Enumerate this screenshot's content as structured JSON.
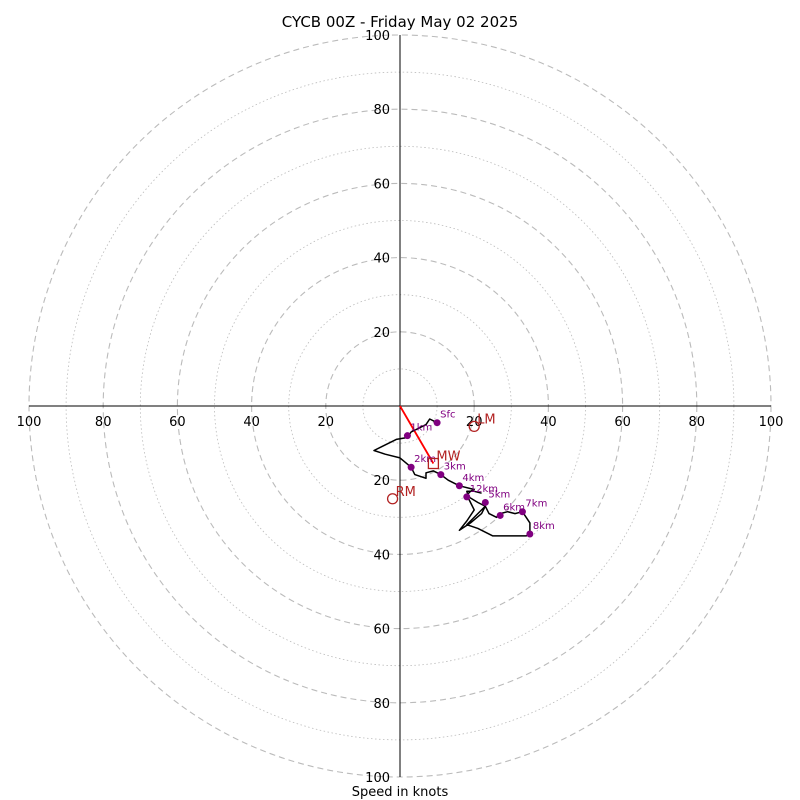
{
  "chart_data": {
    "type": "hodograph",
    "title": "CYCB 00Z - Friday May 02 2025",
    "xlabel": "Speed in knots",
    "ring_max": 100,
    "ring_major_step": 20,
    "ring_minor_step": 10,
    "axis_tick_values": [
      20,
      40,
      60,
      80,
      100
    ],
    "axis_tick_labels": [
      "20",
      "40",
      "60",
      "80",
      "100"
    ],
    "grid": true,
    "colors": {
      "trace": "#000000",
      "height_points": "#800080",
      "motion": "#b22222",
      "shear_vector": "#ff0000",
      "grid": "#bbbbbb"
    },
    "trace_uv": [
      [
        10.0,
        -4.5
      ],
      [
        8.0,
        -3.5
      ],
      [
        7.0,
        -5.0
      ],
      [
        5.0,
        -6.0
      ],
      [
        3.0,
        -7.0
      ],
      [
        2.0,
        -8.5
      ],
      [
        -1.0,
        -9.0
      ],
      [
        -5.0,
        -11.0
      ],
      [
        -7.0,
        -12.0
      ],
      [
        -4.0,
        -13.0
      ],
      [
        0.0,
        -14.0
      ],
      [
        3.0,
        -16.5
      ],
      [
        4.0,
        -18.5
      ],
      [
        7.0,
        -19.5
      ],
      [
        7.0,
        -18.0
      ],
      [
        9.0,
        -17.5
      ],
      [
        11.0,
        -18.5
      ],
      [
        13.0,
        -20.0
      ],
      [
        16.0,
        -21.5
      ],
      [
        20.0,
        -22.5
      ],
      [
        19.0,
        -23.0
      ],
      [
        18.0,
        -24.0
      ],
      [
        19.0,
        -26.0
      ],
      [
        20.0,
        -28.0
      ],
      [
        18.0,
        -31.0
      ],
      [
        16.0,
        -33.5
      ],
      [
        19.0,
        -31.5
      ],
      [
        22.0,
        -29.0
      ],
      [
        23.0,
        -27.0
      ],
      [
        24.0,
        -29.0
      ],
      [
        26.0,
        -30.0
      ],
      [
        27.0,
        -29.0
      ],
      [
        29.0,
        -28.5
      ],
      [
        31.0,
        -29.0
      ],
      [
        33.0,
        -28.5
      ],
      [
        35.0,
        -31.5
      ],
      [
        35.0,
        -34.5
      ],
      [
        34.0,
        -35.0
      ],
      [
        25.0,
        -35.0
      ],
      [
        21.0,
        -33.0
      ],
      [
        18.0,
        -32.0
      ],
      [
        19.0,
        -31.0
      ],
      [
        22.0,
        -28.0
      ],
      [
        23.0,
        -27.0
      ],
      [
        21.0,
        -26.0
      ],
      [
        18.5,
        -24.5
      ],
      [
        18.0,
        -23.0
      ],
      [
        20.0,
        -23.0
      ],
      [
        22.0,
        -23.5
      ]
    ],
    "height_points": [
      {
        "label": "Sfc",
        "u": 10.0,
        "v": -4.5
      },
      {
        "label": "1km",
        "u": 2.0,
        "v": -8.0
      },
      {
        "label": "2km",
        "u": 3.0,
        "v": -16.5
      },
      {
        "label": "3km",
        "u": 11.0,
        "v": -18.5
      },
      {
        "label": "4km",
        "u": 16.0,
        "v": -21.5
      },
      {
        "label": "12km",
        "u": 18.0,
        "v": -24.5
      },
      {
        "label": "5km",
        "u": 23.0,
        "v": -26.0
      },
      {
        "label": "6km",
        "u": 27.0,
        "v": -29.5
      },
      {
        "label": "7km",
        "u": 33.0,
        "v": -28.5
      },
      {
        "label": "8km",
        "u": 35.0,
        "v": -34.5
      }
    ],
    "storm_motion": [
      {
        "label": "LM",
        "u": 20.0,
        "v": -5.5,
        "marker": "circle"
      },
      {
        "label": "MW",
        "u": 9.0,
        "v": -15.5,
        "marker": "square"
      },
      {
        "label": "RM",
        "u": -2.0,
        "v": -25.0,
        "marker": "circle"
      }
    ],
    "shear_vector": {
      "u0": 0.0,
      "v0": 0.0,
      "u1": 9.0,
      "v1": -15.5
    }
  }
}
